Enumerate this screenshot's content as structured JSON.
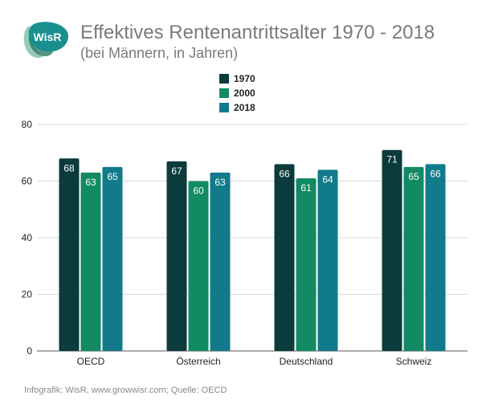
{
  "header": {
    "logo_text": "WisR",
    "title": "Effektives Rentenantrittsalter 1970 - 2018",
    "subtitle": "(bei Männern, in Jahren)"
  },
  "footer": {
    "source": "Infografik: WisR, www.growwisr.com; Quelle: OECD"
  },
  "colors": {
    "series_1970": "#0b3b3c",
    "series_2000": "#128a64",
    "series_2018": "#117a8b",
    "gridline": "#d9d9d9",
    "axis_text": "#222222",
    "logo_main": "#1a8f8f",
    "logo_back": "#1f6f5c",
    "logo_accent": "#3aa37a"
  },
  "chart_data": {
    "type": "bar",
    "title": "Effektives Rentenantrittsalter 1970 - 2018",
    "subtitle": "(bei Männern, in Jahren)",
    "categories": [
      "OECD",
      "Österreich",
      "Deutschland",
      "Schweiz"
    ],
    "series": [
      {
        "name": "1970",
        "values": [
          68,
          67,
          66,
          71
        ]
      },
      {
        "name": "2000",
        "values": [
          63,
          60,
          61,
          65
        ]
      },
      {
        "name": "2018",
        "values": [
          65,
          63,
          64,
          66
        ]
      }
    ],
    "y_ticks": [
      0,
      20,
      40,
      60,
      80
    ],
    "ylim": [
      0,
      80
    ],
    "grid": true,
    "legend_position": "top-center",
    "data_labels": true
  }
}
